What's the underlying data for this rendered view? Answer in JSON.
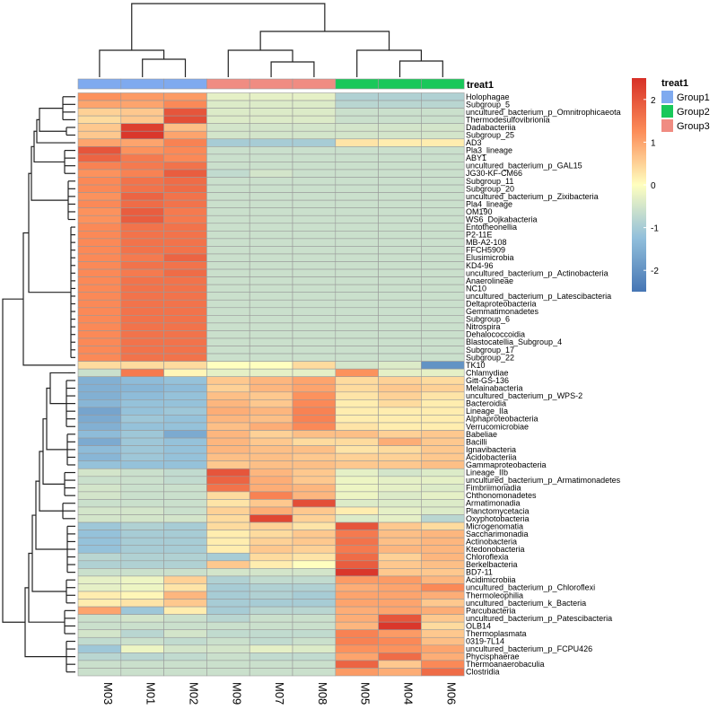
{
  "chart_data": {
    "type": "heatmap",
    "annotation": {
      "title": "treat1",
      "groups": [
        {
          "name": "Group1",
          "color": "#7FAAEF"
        },
        {
          "name": "Group2",
          "color": "#19C85A"
        },
        {
          "name": "Group3",
          "color": "#F08C82"
        }
      ],
      "column_groups": [
        "Group1",
        "Group1",
        "Group1",
        "Group3",
        "Group3",
        "Group3",
        "Group2",
        "Group2",
        "Group2"
      ]
    },
    "columns": [
      "M03",
      "M01",
      "M02",
      "M09",
      "M07",
      "M08",
      "M05",
      "M04",
      "M06"
    ],
    "rows": [
      "Holophagae",
      "Subgroup_5",
      "uncultured_bacterium_p_Omnitrophicaeota",
      "Thermodesulfovibrionia",
      "Dadabacteriia",
      "Subgroup_25",
      "AD3",
      "Pla3_lineage",
      "ABY1",
      "uncultured_bacterium_p_GAL15",
      "JG30-KF-CM66",
      "Subgroup_11",
      "Subgroup_20",
      "uncultured_bacterium_p_Zixibacteria",
      "Pla4_lineage",
      "OM190",
      "WS6_Dojkabacteria",
      "Entotheonellia",
      "P2-11E",
      "MB-A2-108",
      "FFCH5909",
      "Elusimicrobia",
      "KD4-96",
      "uncultured_bacterium_p_Actinobacteria",
      "Anaerolineae",
      "NC10",
      "uncultured_bacterium_p_Latescibacteria",
      "Deltaproteobacteria",
      "Gemmatimonadetes",
      "Subgroup_6",
      "Nitrospira",
      "Dehalococcoidia",
      "Blastocatellia_Subgroup_4",
      "Subgroup_17",
      "Subgroup_22",
      "TK10",
      "Chlamydiae",
      "Gitt-GS-136",
      "Melainabacteria",
      "uncultured_bacterium_p_WPS-2",
      "Bacteroidia",
      "Lineage_IIa",
      "Alphaproteobacteria",
      "Verrucomicrobiae",
      "Babeliae",
      "Bacilli",
      "Ignavibacteria",
      "Acidobacteriia",
      "Gammaproteobacteria",
      "Lineage_IIb",
      "uncultured_bacterium_p_Armatimonadetes",
      "Fimbriimonadia",
      "Chthonomonadetes",
      "Armatimonadia",
      "Planctomycetacia",
      "Oxyphotobacteria",
      "Microgenomatia",
      "Saccharimonadia",
      "Actinobacteria",
      "Ktedonobacteria",
      "Chloroflexia",
      "Berkelbacteria",
      "BD7-11",
      "Acidimicrobiia",
      "uncultured_bacterium_p_Chloroflexi",
      "Thermoleophilia",
      "uncultured_bacterium_k_Bacteria",
      "Parcubacteria",
      "uncultured_bacterium_p_Patescibacteria",
      "OLB14",
      "Thermoplasmata",
      "0319-7L14",
      "uncultured_bacterium_p_FCPU426",
      "Phycisphaerae",
      "Thermoanaerobaculia",
      "Clostridia"
    ],
    "values": [
      [
        1.2,
        1.1,
        1.1,
        -0.3,
        -0.3,
        -0.3,
        -0.9,
        -0.9,
        -0.9
      ],
      [
        1.0,
        1.0,
        1.3,
        -0.4,
        -0.4,
        -0.4,
        -0.8,
        -0.8,
        -0.8
      ],
      [
        0.5,
        0.6,
        2.0,
        -0.4,
        -0.4,
        -0.4,
        -0.6,
        -0.6,
        -0.6
      ],
      [
        0.4,
        0.6,
        2.1,
        -0.4,
        -0.4,
        -0.4,
        -0.6,
        -0.6,
        -0.6
      ],
      [
        0.6,
        2.3,
        0.7,
        -0.5,
        -0.5,
        -0.5,
        -0.5,
        -0.5,
        -0.5
      ],
      [
        0.6,
        2.4,
        1.0,
        -0.5,
        -0.5,
        -0.5,
        -0.5,
        -0.5,
        -0.5
      ],
      [
        1.0,
        1.0,
        1.4,
        -1.0,
        -1.0,
        -1.0,
        0.3,
        0.2,
        0.2
      ],
      [
        2.0,
        1.2,
        1.3,
        -0.6,
        -0.6,
        -0.6,
        -0.6,
        -0.6,
        -0.6
      ],
      [
        1.8,
        1.5,
        1.3,
        -0.6,
        -0.6,
        -0.6,
        -0.6,
        -0.6,
        -0.6
      ],
      [
        1.4,
        1.5,
        1.6,
        -0.6,
        -0.6,
        -0.6,
        -0.6,
        -0.6,
        -0.6
      ],
      [
        1.2,
        1.4,
        1.9,
        -0.7,
        -0.5,
        -0.6,
        -0.6,
        -0.6,
        -0.6
      ],
      [
        1.3,
        1.6,
        1.7,
        -0.6,
        -0.6,
        -0.6,
        -0.6,
        -0.6,
        -0.6
      ],
      [
        1.3,
        1.6,
        1.7,
        -0.6,
        -0.6,
        -0.6,
        -0.6,
        -0.6,
        -0.6
      ],
      [
        1.2,
        1.8,
        1.6,
        -0.6,
        -0.6,
        -0.6,
        -0.6,
        -0.6,
        -0.6
      ],
      [
        1.3,
        1.7,
        1.6,
        -0.6,
        -0.6,
        -0.6,
        -0.6,
        -0.6,
        -0.6
      ],
      [
        1.2,
        1.9,
        1.5,
        -0.6,
        -0.6,
        -0.6,
        -0.6,
        -0.6,
        -0.6
      ],
      [
        1.2,
        1.9,
        1.5,
        -0.6,
        -0.6,
        -0.6,
        -0.6,
        -0.6,
        -0.6
      ],
      [
        1.3,
        1.6,
        1.6,
        -0.6,
        -0.6,
        -0.6,
        -0.6,
        -0.6,
        -0.6
      ],
      [
        1.3,
        1.6,
        1.6,
        -0.6,
        -0.6,
        -0.6,
        -0.6,
        -0.6,
        -0.6
      ],
      [
        1.3,
        1.6,
        1.6,
        -0.6,
        -0.6,
        -0.6,
        -0.6,
        -0.6,
        -0.6
      ],
      [
        1.3,
        1.6,
        1.6,
        -0.6,
        -0.6,
        -0.6,
        -0.6,
        -0.6,
        -0.6
      ],
      [
        1.3,
        1.5,
        1.8,
        -0.6,
        -0.6,
        -0.6,
        -0.6,
        -0.6,
        -0.6
      ],
      [
        1.3,
        1.6,
        1.6,
        -0.6,
        -0.6,
        -0.6,
        -0.6,
        -0.6,
        -0.6
      ],
      [
        1.3,
        1.5,
        1.7,
        -0.6,
        -0.6,
        -0.6,
        -0.6,
        -0.6,
        -0.6
      ],
      [
        1.3,
        1.6,
        1.6,
        -0.6,
        -0.6,
        -0.6,
        -0.6,
        -0.6,
        -0.6
      ],
      [
        1.3,
        1.6,
        1.6,
        -0.6,
        -0.6,
        -0.6,
        -0.6,
        -0.6,
        -0.6
      ],
      [
        1.3,
        1.6,
        1.6,
        -0.6,
        -0.6,
        -0.6,
        -0.6,
        -0.6,
        -0.6
      ],
      [
        1.3,
        1.6,
        1.6,
        -0.6,
        -0.6,
        -0.6,
        -0.6,
        -0.6,
        -0.6
      ],
      [
        1.3,
        1.6,
        1.6,
        -0.6,
        -0.6,
        -0.6,
        -0.6,
        -0.6,
        -0.6
      ],
      [
        1.3,
        1.6,
        1.6,
        -0.6,
        -0.6,
        -0.6,
        -0.6,
        -0.6,
        -0.6
      ],
      [
        1.3,
        1.6,
        1.6,
        -0.6,
        -0.6,
        -0.6,
        -0.6,
        -0.6,
        -0.6
      ],
      [
        1.3,
        1.6,
        1.6,
        -0.6,
        -0.6,
        -0.6,
        -0.6,
        -0.6,
        -0.6
      ],
      [
        1.3,
        1.6,
        1.6,
        -0.6,
        -0.6,
        -0.6,
        -0.6,
        -0.6,
        -0.6
      ],
      [
        1.3,
        1.6,
        1.6,
        -0.6,
        -0.6,
        -0.6,
        -0.6,
        -0.6,
        -0.6
      ],
      [
        1.3,
        1.6,
        1.6,
        -0.6,
        -0.6,
        -0.6,
        -0.6,
        -0.6,
        -0.6
      ],
      [
        0.4,
        0.4,
        0.4,
        0.0,
        0.0,
        0.4,
        -0.5,
        -0.4,
        -2.0
      ],
      [
        -0.6,
        1.5,
        0.1,
        -0.3,
        -0.3,
        -0.3,
        1.2,
        -0.3,
        -0.3
      ],
      [
        -1.5,
        -1.3,
        -1.2,
        0.6,
        0.8,
        1.0,
        0.4,
        0.5,
        0.4
      ],
      [
        -1.5,
        -1.4,
        -1.3,
        0.5,
        0.8,
        1.0,
        0.4,
        0.6,
        0.5
      ],
      [
        -1.5,
        -1.3,
        -1.2,
        0.7,
        0.6,
        1.2,
        0.3,
        0.5,
        0.3
      ],
      [
        -1.4,
        -1.2,
        -1.2,
        0.8,
        0.6,
        1.3,
        0.2,
        0.4,
        0.2
      ],
      [
        -1.7,
        -1.2,
        -1.1,
        0.9,
        0.8,
        1.4,
        0.2,
        0.2,
        0.2
      ],
      [
        -1.6,
        -1.1,
        -1.2,
        0.8,
        0.7,
        1.4,
        0.2,
        0.2,
        0.2
      ],
      [
        -1.5,
        -1.2,
        -1.2,
        0.7,
        0.9,
        1.3,
        0.3,
        0.2,
        0.2
      ],
      [
        -1.3,
        -1.1,
        -1.6,
        0.8,
        0.5,
        0.7,
        0.7,
        0.5,
        0.6
      ],
      [
        -1.6,
        -1.1,
        -1.2,
        0.8,
        0.6,
        0.4,
        0.4,
        0.9,
        0.6
      ],
      [
        -1.3,
        -1.1,
        -1.2,
        0.8,
        0.7,
        0.7,
        0.3,
        0.4,
        0.6
      ],
      [
        -1.4,
        -1.1,
        -1.2,
        0.7,
        0.7,
        0.6,
        0.5,
        0.5,
        0.6
      ],
      [
        -1.2,
        -1.2,
        -1.2,
        0.6,
        0.7,
        0.7,
        0.6,
        0.6,
        0.7
      ],
      [
        -0.5,
        -0.6,
        -0.7,
        2.0,
        0.8,
        0.6,
        -0.3,
        -0.5,
        -0.4
      ],
      [
        -0.6,
        -0.6,
        -0.7,
        1.8,
        0.9,
        0.6,
        -0.2,
        -0.3,
        -0.3
      ],
      [
        -0.5,
        -0.6,
        -0.6,
        1.6,
        0.9,
        0.8,
        -0.2,
        -0.3,
        -0.4
      ],
      [
        -0.5,
        -0.6,
        -0.6,
        0.4,
        1.4,
        0.8,
        -0.2,
        -0.4,
        -0.3
      ],
      [
        -0.6,
        -0.6,
        -0.6,
        0.3,
        0.6,
        2.1,
        -0.4,
        -0.4,
        -0.4
      ],
      [
        -0.5,
        -0.5,
        -0.6,
        0.5,
        0.9,
        0.6,
        0.2,
        -0.3,
        -0.4
      ],
      [
        -0.5,
        -0.5,
        -0.5,
        0.4,
        2.2,
        0.5,
        -0.4,
        -0.3,
        -0.8
      ],
      [
        -1.1,
        -0.9,
        -1.0,
        0.4,
        0.5,
        0.3,
        2.0,
        0.6,
        0.4
      ],
      [
        -1.2,
        -1.0,
        -1.0,
        0.2,
        0.4,
        0.6,
        1.5,
        0.7,
        0.8
      ],
      [
        -1.2,
        -1.0,
        -1.0,
        0.2,
        0.5,
        0.6,
        1.6,
        0.7,
        0.8
      ],
      [
        -1.2,
        -1.0,
        -1.0,
        0.2,
        0.6,
        0.5,
        1.5,
        0.8,
        0.8
      ],
      [
        -0.8,
        -0.9,
        -0.9,
        -1.0,
        0.4,
        0.3,
        1.7,
        0.5,
        0.8
      ],
      [
        -0.9,
        -0.9,
        -0.9,
        0.6,
        0.2,
        0.0,
        1.9,
        0.6,
        0.7
      ],
      [
        -0.6,
        -0.6,
        -0.6,
        -0.5,
        -0.5,
        -0.5,
        2.4,
        0.6,
        0.6
      ],
      [
        -0.3,
        -0.2,
        0.5,
        -0.9,
        -0.7,
        -0.7,
        1.1,
        1.1,
        0.8
      ],
      [
        -0.3,
        -0.2,
        0.3,
        -1.0,
        -0.9,
        -0.9,
        0.9,
        1.0,
        1.3
      ],
      [
        0.2,
        0.1,
        0.8,
        -1.0,
        -0.9,
        -1.0,
        1.0,
        1.0,
        0.9
      ],
      [
        0.2,
        0.3,
        0.6,
        -1.0,
        -1.0,
        -1.0,
        1.0,
        1.0,
        0.6
      ],
      [
        1.0,
        -1.1,
        0.2,
        -1.0,
        -0.8,
        -0.8,
        0.9,
        1.0,
        0.9
      ],
      [
        -0.6,
        -0.5,
        -0.6,
        -0.8,
        -0.6,
        -0.6,
        0.9,
        2.0,
        0.6
      ],
      [
        -0.6,
        -0.6,
        -0.6,
        -0.6,
        -0.6,
        -0.6,
        0.8,
        2.4,
        0.4
      ],
      [
        -0.5,
        -0.8,
        -0.5,
        -0.7,
        -0.7,
        -0.7,
        1.4,
        1.1,
        0.6
      ],
      [
        -0.7,
        -0.6,
        -0.7,
        -0.6,
        -0.7,
        -0.6,
        1.4,
        1.3,
        0.7
      ],
      [
        -1.1,
        -0.2,
        -0.5,
        -0.5,
        -0.3,
        -0.4,
        1.2,
        1.2,
        1.0
      ],
      [
        -0.8,
        -0.8,
        -0.7,
        -0.6,
        -0.7,
        -0.7,
        1.0,
        1.7,
        0.9
      ],
      [
        -0.6,
        -0.6,
        -0.6,
        -0.6,
        -0.6,
        -0.6,
        1.8,
        0.6,
        1.3
      ],
      [
        -0.6,
        -0.6,
        -0.6,
        -0.6,
        -0.6,
        -0.6,
        1.1,
        0.9,
        1.7
      ]
    ],
    "legend_ticks": [
      2,
      1,
      0,
      -1,
      -2
    ],
    "range": [
      -2.5,
      2.5
    ],
    "color_stops": [
      {
        "v": -2.5,
        "c": "#4575B4"
      },
      {
        "v": -1.25,
        "c": "#91BFDB"
      },
      {
        "v": 0,
        "c": "#FFFFBF"
      },
      {
        "v": 1.25,
        "c": "#FC8D59"
      },
      {
        "v": 2.5,
        "c": "#D73027"
      }
    ]
  }
}
